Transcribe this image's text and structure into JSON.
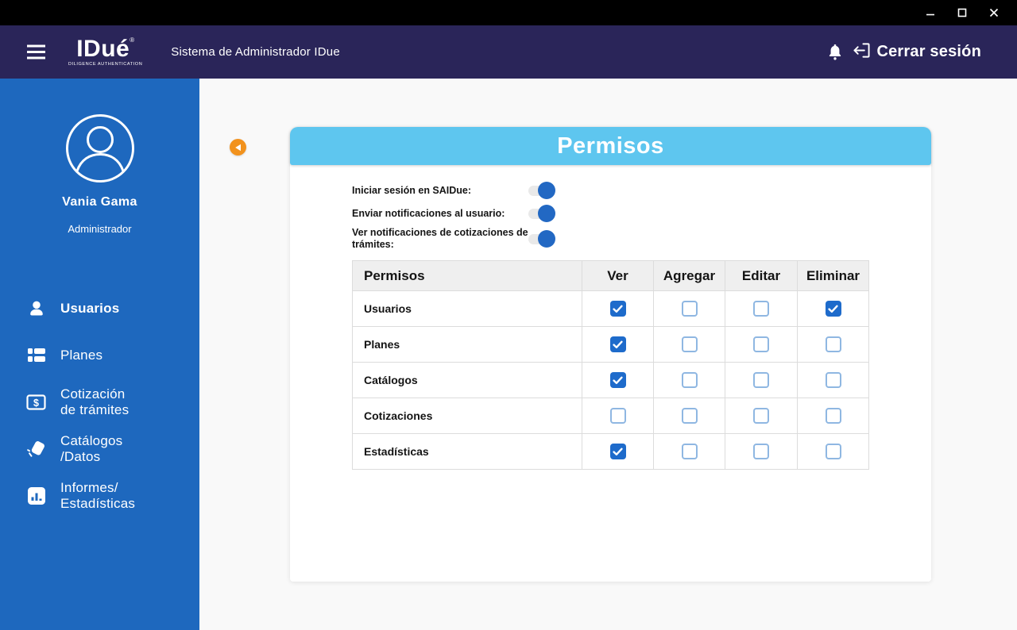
{
  "window": {
    "controls": [
      {
        "name": "minimize",
        "icon": "minimize-icon"
      },
      {
        "name": "maximize",
        "icon": "maximize-icon"
      },
      {
        "name": "close",
        "icon": "close-icon"
      }
    ]
  },
  "header": {
    "menu_icon": "hamburger-menu-icon",
    "logo": {
      "text": "IDué",
      "reg_mark": "®",
      "tagline": "DILIGENCE AUTHENTICATION"
    },
    "app_title": "Sistema de Administrador IDue",
    "bell_icon": "notification-bell-icon",
    "logout_icon": "logout-icon",
    "logout_label": "Cerrar sesión"
  },
  "sidebar": {
    "user": {
      "name": "Vania Gama",
      "role": "Administrador",
      "avatar_icon": "user-avatar-icon"
    },
    "items": [
      {
        "label": "Usuarios",
        "icon": "users-icon",
        "active": true
      },
      {
        "label": "Planes",
        "icon": "plans-icon",
        "active": false
      },
      {
        "label": "Cotización\nde trámites",
        "icon": "quote-dollar-icon",
        "active": false
      },
      {
        "label": "Catálogos\n/Datos",
        "icon": "catalogs-icon",
        "active": false
      },
      {
        "label": "Informes/\nEstadísticas",
        "icon": "stats-chart-icon",
        "active": false
      }
    ]
  },
  "main": {
    "back_icon": "back-arrow-icon",
    "panel_title": "Permisos",
    "toggles": [
      {
        "label": "Iniciar sesión en SAIDue:",
        "on": true
      },
      {
        "label": "Enviar notificaciones al usuario:",
        "on": true
      },
      {
        "label": "Ver notificaciones de cotizaciones de trámites:",
        "on": true
      }
    ],
    "table": {
      "headers": [
        "Permisos",
        "Ver",
        "Agregar",
        "Editar",
        "Eliminar"
      ],
      "rows": [
        {
          "label": "Usuarios",
          "checks": [
            true,
            false,
            false,
            true
          ]
        },
        {
          "label": "Planes",
          "checks": [
            true,
            false,
            false,
            false
          ]
        },
        {
          "label": "Catálogos",
          "checks": [
            true,
            false,
            false,
            false
          ]
        },
        {
          "label": "Cotizaciones",
          "checks": [
            false,
            false,
            false,
            false
          ]
        },
        {
          "label": "Estadísticas",
          "checks": [
            true,
            false,
            false,
            false
          ]
        }
      ]
    }
  },
  "colors": {
    "titlebar": "#000000",
    "navbar": "#2A2559",
    "sidebar": "#1E68BE",
    "banner": "#5EC6EF",
    "accent_orange": "#F2921D",
    "toggle_on": "#2268C3",
    "checkbox_checked": "#1E6BCB",
    "checkbox_border": "#8FB7E2",
    "table_header_bg": "#EFEFEF"
  }
}
